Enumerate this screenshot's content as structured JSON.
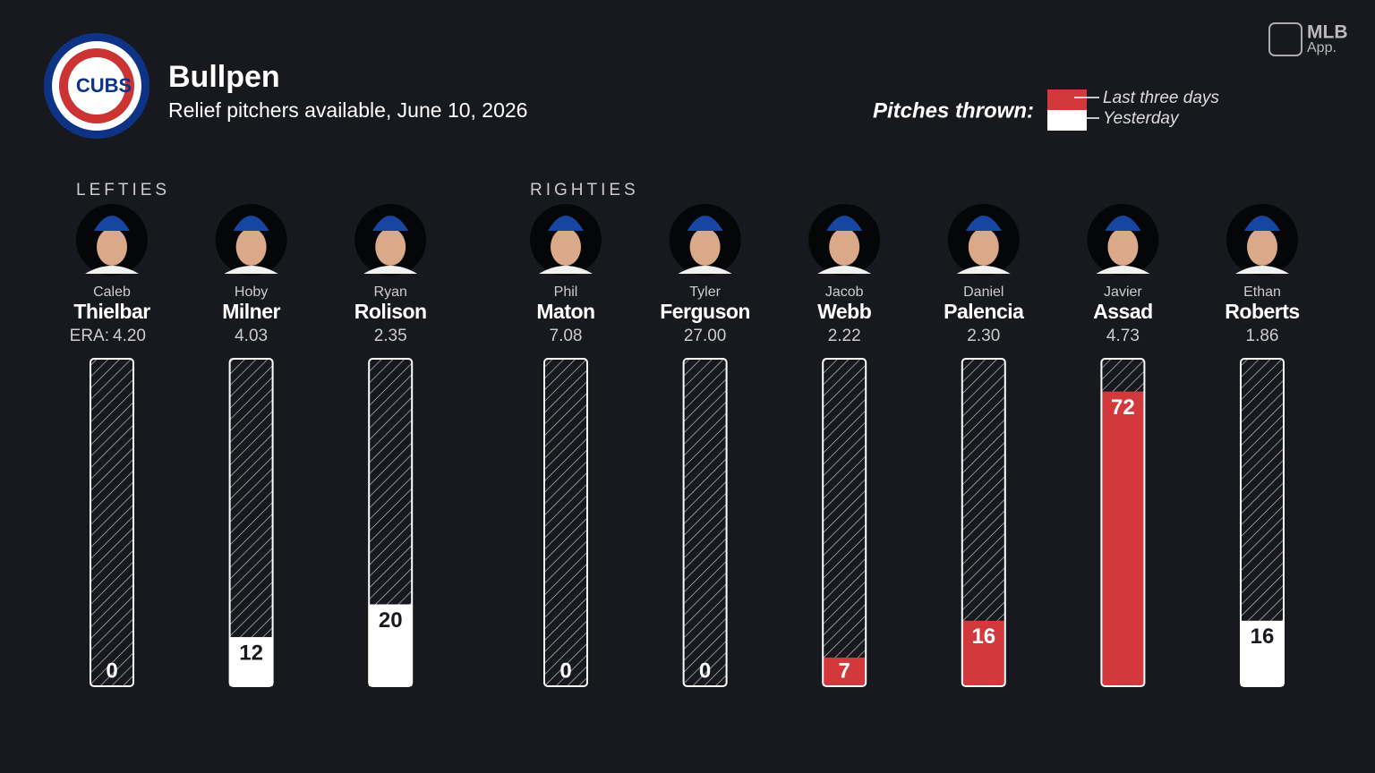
{
  "header": {
    "logo_text": "CUBS",
    "title": "Bullpen",
    "subtitle": "Relief pitchers available, June 10, 2026",
    "brand": "MLB",
    "brand_sub": "App."
  },
  "chart_data": {
    "type": "bar",
    "ylim": [
      0,
      80
    ],
    "era_label": "ERA:",
    "legend_title": "Pitches thrown:",
    "series": [
      {
        "key": "last_three_days",
        "name": "Last three days",
        "color": "#d3383c"
      },
      {
        "key": "yesterday",
        "name": "Yesterday",
        "color": "#ffffff"
      }
    ],
    "groups": [
      {
        "name": "LEFTIES",
        "pitchers": [
          {
            "first": "Caleb",
            "last": "Thielbar",
            "era": "4.20",
            "yesterday": 0,
            "last_three_days": null
          },
          {
            "first": "Hoby",
            "last": "Milner",
            "era": "4.03",
            "yesterday": 12,
            "last_three_days": null
          },
          {
            "first": "Ryan",
            "last": "Rolison",
            "era": "2.35",
            "yesterday": 20,
            "last_three_days": null
          }
        ]
      },
      {
        "name": "RIGHTIES",
        "pitchers": [
          {
            "first": "Phil",
            "last": "Maton",
            "era": "7.08",
            "yesterday": 0,
            "last_three_days": null
          },
          {
            "first": "Tyler",
            "last": "Ferguson",
            "era": "27.00",
            "yesterday": 0,
            "last_three_days": null
          },
          {
            "first": "Jacob",
            "last": "Webb",
            "era": "2.22",
            "yesterday": null,
            "last_three_days": 7
          },
          {
            "first": "Daniel",
            "last": "Palencia",
            "era": "2.30",
            "yesterday": null,
            "last_three_days": 16
          },
          {
            "first": "Javier",
            "last": "Assad",
            "era": "4.73",
            "yesterday": null,
            "last_three_days": 72
          },
          {
            "first": "Ethan",
            "last": "Roberts",
            "era": "1.86",
            "yesterday": 16,
            "last_three_days": null
          }
        ]
      }
    ]
  }
}
